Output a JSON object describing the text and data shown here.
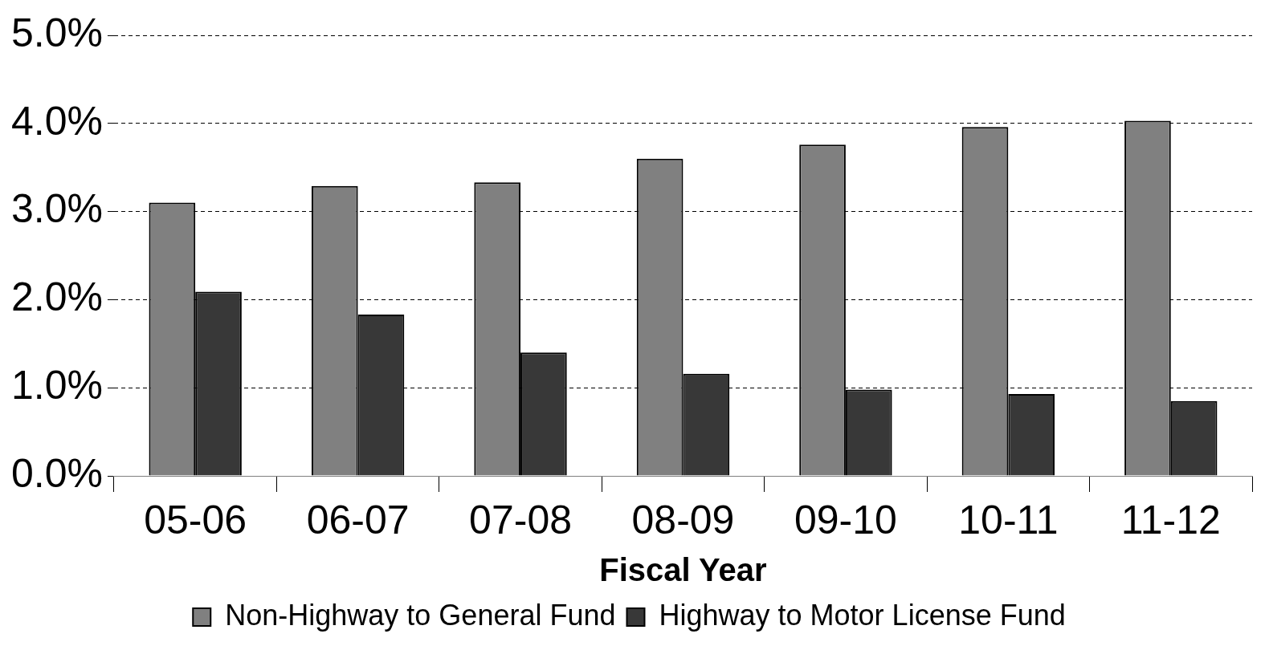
{
  "chart_data": {
    "type": "bar",
    "xlabel": "Fiscal Year",
    "categories": [
      "05-06",
      "06-07",
      "07-08",
      "08-09",
      "09-10",
      "10-11",
      "11-12"
    ],
    "series": [
      {
        "name": "Non-Highway to General Fund",
        "color": "#808080",
        "values": [
          3.1,
          3.29,
          3.33,
          3.6,
          3.76,
          3.96,
          4.03
        ]
      },
      {
        "name": "Highway to Motor License Fund",
        "color": "#383838",
        "values": [
          2.09,
          1.83,
          1.4,
          1.16,
          0.98,
          0.93,
          0.85
        ]
      }
    ],
    "ylim": [
      0,
      5
    ],
    "yticks": [
      {
        "value": 0,
        "label": "0.0%"
      },
      {
        "value": 1,
        "label": "1.0%"
      },
      {
        "value": 2,
        "label": "2.0%"
      },
      {
        "value": 3,
        "label": "3.0%"
      },
      {
        "value": 4,
        "label": "4.0%"
      },
      {
        "value": 5,
        "label": "5.0%"
      }
    ],
    "grid": "y",
    "legend": "bottom"
  }
}
